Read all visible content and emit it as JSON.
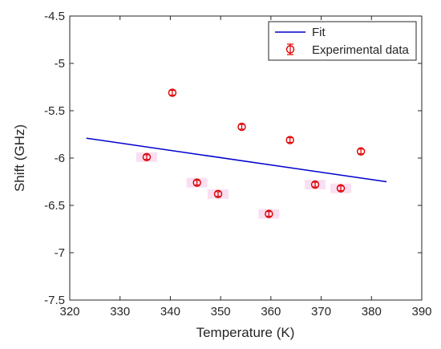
{
  "chart_data": {
    "type": "scatter",
    "xlabel": "Temperature (K)",
    "ylabel": "Shift (GHz)",
    "xlim": [
      320,
      390
    ],
    "ylim": [
      -7.5,
      -4.5
    ],
    "xticks": [
      320,
      330,
      340,
      350,
      360,
      370,
      380,
      390
    ],
    "xtick_labels": [
      "320",
      "330",
      "340",
      "350",
      "360",
      "370",
      "380",
      "390"
    ],
    "yticks": [
      -7.5,
      -7,
      -6.5,
      -6,
      -5.5,
      -5,
      -4.5
    ],
    "ytick_labels": [
      "-7.5",
      "-7",
      "-6.5",
      "-6",
      "-5.5",
      "-5",
      "-4.5"
    ],
    "grid": false,
    "legend_position": "top-right",
    "series": [
      {
        "name": "Fit",
        "kind": "line",
        "color": "#0000cc",
        "x": [
          323.3,
          383.0
        ],
        "y": [
          -5.79,
          -6.25
        ]
      },
      {
        "name": "Experimental data",
        "kind": "errorbar",
        "color": "#dd0000",
        "x": [
          335.3,
          340.4,
          345.3,
          349.5,
          354.2,
          359.6,
          363.8,
          368.8,
          373.9,
          377.9
        ],
        "y": [
          -5.99,
          -5.31,
          -6.26,
          -6.38,
          -5.67,
          -6.59,
          -5.81,
          -6.28,
          -6.32,
          -5.93
        ],
        "error": [
          0.025,
          0.025,
          0.025,
          0.025,
          0.025,
          0.025,
          0.025,
          0.025,
          0.025,
          0.025
        ]
      }
    ]
  }
}
